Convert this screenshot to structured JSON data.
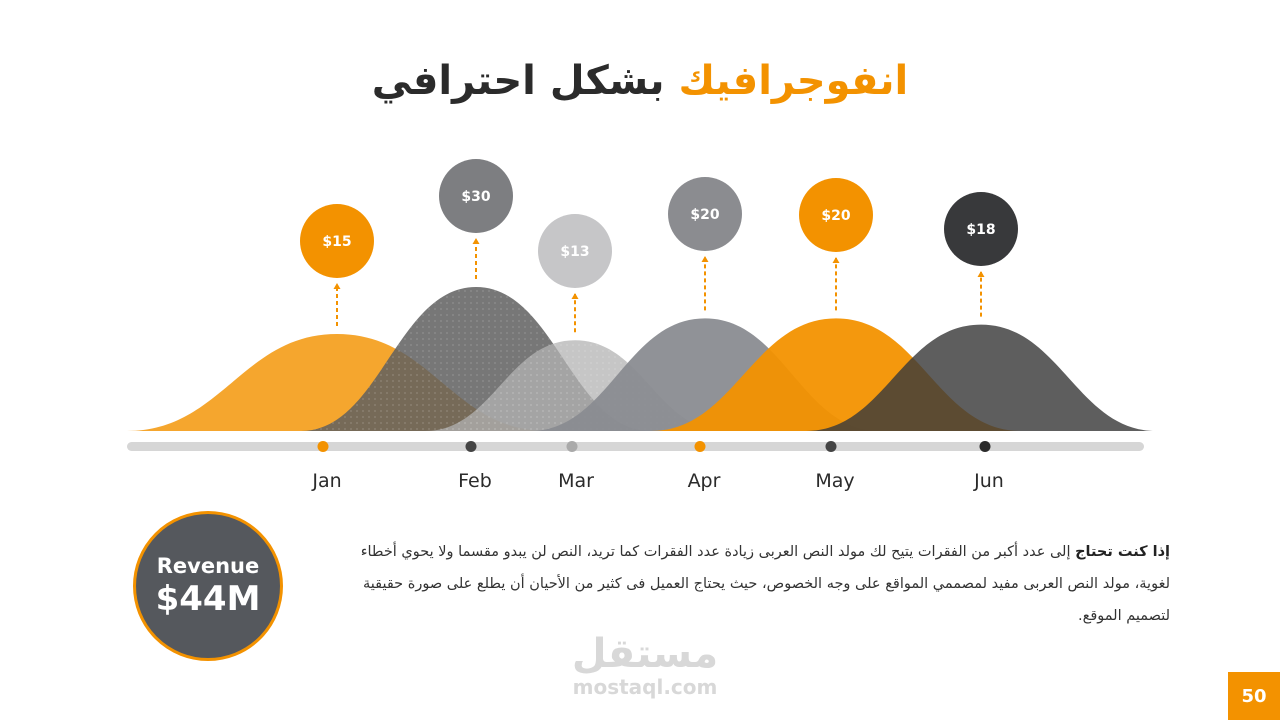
{
  "title": {
    "accent": "انفوجرافيك",
    "rest": "بشكل احترافي"
  },
  "chart_data": {
    "type": "area",
    "categories": [
      "Jan",
      "Feb",
      "Mar",
      "Apr",
      "May",
      "Jun"
    ],
    "values": [
      15,
      30,
      13,
      20,
      20,
      18
    ],
    "value_labels": [
      "$15",
      "$30",
      "$13",
      "$20",
      "$20",
      "$18"
    ],
    "colors": [
      "#f39200",
      "#5f5f5f",
      "#b3b3b3",
      "#8a8c91",
      "#f39200",
      "#3a3a3a"
    ],
    "marker_colors": [
      "#f39200",
      "#444444",
      "#aaaaaa",
      "#f39200",
      "#444444",
      "#2b2b2b"
    ],
    "badge_colors": [
      "#f39200",
      "#7d7e81",
      "#c6c6c8",
      "#8b8c90",
      "#f39200",
      "#38393b"
    ],
    "legend": "none",
    "grid": false
  },
  "revenue": {
    "label": "Revenue",
    "value": "$44M"
  },
  "paragraph": {
    "lead": "إذا كنت تحتاج",
    "body": " إلى عدد أكبر من الفقرات يتيح لك مولد النص العربى زيادة عدد الفقرات كما تريد، النص لن يبدو مقسما ولا يحوي أخطاء لغوية، مولد النص العربى مفيد لمصممي المواقع على وجه الخصوص، حيث يحتاج العميل فى كثير من الأحيان أن يطلع على صورة حقيقية لتصميم الموقع."
  },
  "watermark": {
    "arabic": "مستقل",
    "latin": "mostaql.com"
  },
  "page_number": "50"
}
